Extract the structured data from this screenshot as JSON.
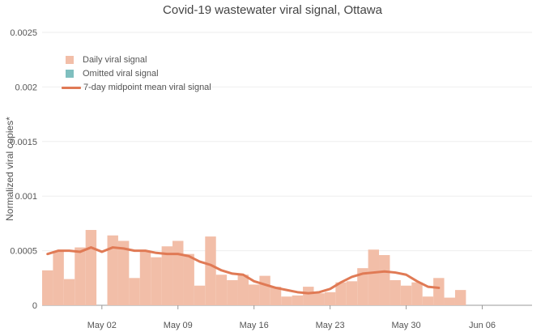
{
  "chart_data": {
    "type": "bar",
    "title": "Covid-19 wastewater viral signal, Ottawa",
    "xlabel": "",
    "ylabel": "Normalized viral copies*",
    "ylim": [
      0,
      0.0025
    ],
    "yticks": [
      0,
      0.0005,
      0.001,
      0.0015,
      0.002,
      0.0025
    ],
    "ytick_labels": [
      "0",
      "0.0005",
      "0.001",
      "0.0015",
      "0.002",
      "0.0025"
    ],
    "x_start": "2021-04-27",
    "xticks": [
      {
        "date": "2021-05-02",
        "label": "May 02"
      },
      {
        "date": "2021-05-09",
        "label": "May 09"
      },
      {
        "date": "2021-05-16",
        "label": "May 16"
      },
      {
        "date": "2021-05-23",
        "label": "May 23"
      },
      {
        "date": "2021-05-30",
        "label": "May 30"
      },
      {
        "date": "2021-06-06",
        "label": "Jun 06"
      }
    ],
    "grid": true,
    "legend_position": "top-left",
    "colors": {
      "daily": "#f2bea8",
      "omitted": "#7fbfbf",
      "mean": "#e07a55"
    },
    "series": [
      {
        "name": "Daily viral signal",
        "type": "bar",
        "dates": [
          "2021-04-27",
          "2021-04-28",
          "2021-04-29",
          "2021-04-30",
          "2021-05-01",
          "2021-05-02",
          "2021-05-03",
          "2021-05-04",
          "2021-05-05",
          "2021-05-06",
          "2021-05-07",
          "2021-05-08",
          "2021-05-09",
          "2021-05-10",
          "2021-05-11",
          "2021-05-12",
          "2021-05-13",
          "2021-05-14",
          "2021-05-15",
          "2021-05-16",
          "2021-05-17",
          "2021-05-18",
          "2021-05-19",
          "2021-05-20",
          "2021-05-21",
          "2021-05-22",
          "2021-05-23",
          "2021-05-24",
          "2021-05-25",
          "2021-05-26",
          "2021-05-27",
          "2021-05-28",
          "2021-05-29",
          "2021-05-30",
          "2021-05-31",
          "2021-06-01",
          "2021-06-02",
          "2021-06-03",
          "2021-06-04",
          "2021-06-05"
        ],
        "values": [
          0.00032,
          0.00049,
          0.00024,
          0.00053,
          0.00069,
          null,
          0.00064,
          0.00059,
          0.00025,
          0.00049,
          0.00044,
          0.00054,
          0.00059,
          0.00047,
          0.00018,
          0.00063,
          0.00028,
          0.00023,
          0.00028,
          0.00019,
          0.00027,
          0.00017,
          8e-05,
          9e-05,
          0.00017,
          0.00011,
          0.00012,
          0.00021,
          0.00022,
          0.00034,
          0.00051,
          0.00046,
          0.00023,
          0.00018,
          0.00021,
          8e-05,
          0.00025,
          7e-05,
          0.00014,
          null
        ]
      },
      {
        "name": "Omitted viral signal",
        "type": "bar",
        "dates": [],
        "values": []
      },
      {
        "name": "7-day midpoint mean viral signal",
        "type": "line",
        "dates": [
          "2021-04-27",
          "2021-04-28",
          "2021-04-29",
          "2021-04-30",
          "2021-05-01",
          "2021-05-02",
          "2021-05-03",
          "2021-05-04",
          "2021-05-05",
          "2021-05-06",
          "2021-05-07",
          "2021-05-08",
          "2021-05-09",
          "2021-05-10",
          "2021-05-11",
          "2021-05-12",
          "2021-05-13",
          "2021-05-14",
          "2021-05-15",
          "2021-05-16",
          "2021-05-17",
          "2021-05-18",
          "2021-05-19",
          "2021-05-20",
          "2021-05-21",
          "2021-05-22",
          "2021-05-23",
          "2021-05-24",
          "2021-05-25",
          "2021-05-26",
          "2021-05-27",
          "2021-05-28",
          "2021-05-29",
          "2021-05-30",
          "2021-05-31",
          "2021-06-01",
          "2021-06-02"
        ],
        "values": [
          0.00047,
          0.0005,
          0.0005,
          0.00049,
          0.00053,
          0.00049,
          0.00053,
          0.00052,
          0.0005,
          0.0005,
          0.00048,
          0.00047,
          0.00047,
          0.00045,
          0.0004,
          0.00037,
          0.00032,
          0.00029,
          0.00028,
          0.00022,
          0.00019,
          0.00016,
          0.00014,
          0.00012,
          0.00011,
          0.00012,
          0.00015,
          0.00021,
          0.00026,
          0.00029,
          0.0003,
          0.00031,
          0.0003,
          0.00028,
          0.00022,
          0.00017,
          0.00016
        ]
      }
    ]
  }
}
